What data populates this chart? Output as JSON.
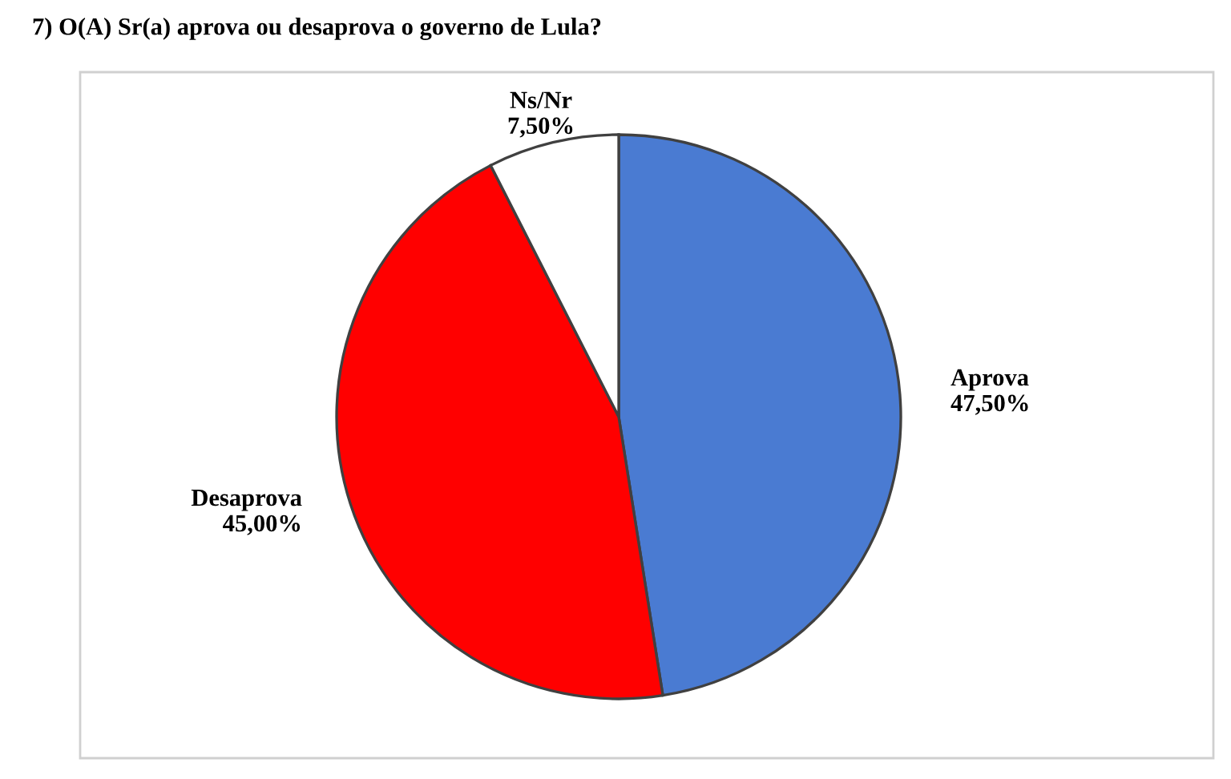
{
  "chart_data": {
    "type": "pie",
    "title": "7) O(A) Sr(a) aprova ou desaprova o governo de Lula?",
    "categories": [
      "Aprova",
      "Desaprova",
      "Ns/Nr"
    ],
    "values": [
      47.5,
      45.0,
      7.5
    ],
    "colors": [
      "#4a7bd2",
      "#ff0000",
      "#ffffff"
    ],
    "value_labels": [
      "47,50%",
      "45,00%",
      "7,50%"
    ]
  }
}
